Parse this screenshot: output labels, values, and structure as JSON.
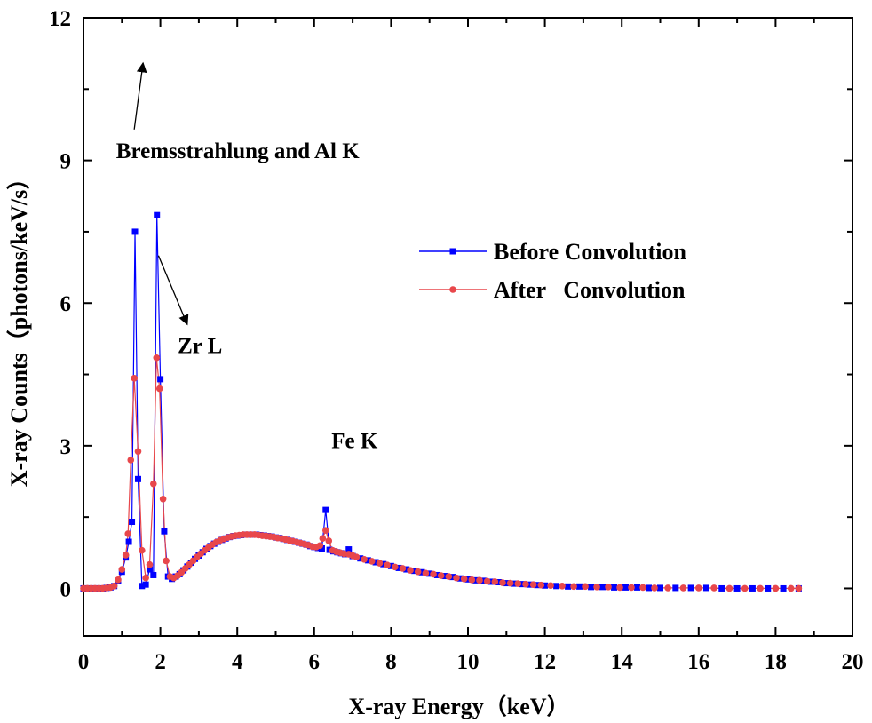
{
  "chart_data": {
    "type": "line",
    "title": "",
    "xlabel": "X-ray Energy（keV）",
    "ylabel": "X-ray Counts（photons/keV/s）",
    "xlim": [
      0,
      20
    ],
    "ylim": [
      -1,
      12
    ],
    "xticks": [
      "0",
      "2",
      "4",
      "6",
      "8",
      "10",
      "12",
      "14",
      "16",
      "18",
      "20"
    ],
    "yticks": [
      "0",
      "3",
      "6",
      "9",
      "12"
    ],
    "grid": false,
    "legend_position": "right",
    "series": [
      {
        "name": "Before Convolution",
        "color": "#0000ff",
        "marker": "square",
        "points": [
          [
            0.0,
            0.0
          ],
          [
            0.1,
            0.0
          ],
          [
            0.2,
            0.0
          ],
          [
            0.3,
            0.0
          ],
          [
            0.4,
            0.0
          ],
          [
            0.5,
            0.0
          ],
          [
            0.6,
            0.01
          ],
          [
            0.7,
            0.02
          ],
          [
            0.8,
            0.05
          ],
          [
            0.9,
            0.15
          ],
          [
            1.0,
            0.35
          ],
          [
            1.1,
            0.65
          ],
          [
            1.18,
            0.98
          ],
          [
            1.26,
            1.4
          ],
          [
            1.34,
            7.5
          ],
          [
            1.42,
            2.3
          ],
          [
            1.52,
            0.05
          ],
          [
            1.62,
            0.08
          ],
          [
            1.72,
            0.4
          ],
          [
            1.82,
            0.28
          ],
          [
            1.91,
            7.85
          ],
          [
            2.0,
            4.4
          ],
          [
            2.1,
            1.2
          ],
          [
            2.2,
            0.25
          ],
          [
            2.3,
            0.2
          ],
          [
            2.4,
            0.25
          ],
          [
            2.5,
            0.3
          ],
          [
            2.6,
            0.38
          ],
          [
            2.7,
            0.46
          ],
          [
            2.8,
            0.54
          ],
          [
            2.9,
            0.62
          ],
          [
            3.0,
            0.69
          ],
          [
            3.1,
            0.76
          ],
          [
            3.2,
            0.83
          ],
          [
            3.3,
            0.89
          ],
          [
            3.4,
            0.94
          ],
          [
            3.5,
            0.98
          ],
          [
            3.6,
            1.02
          ],
          [
            3.7,
            1.05
          ],
          [
            3.8,
            1.08
          ],
          [
            3.9,
            1.1
          ],
          [
            4.0,
            1.11
          ],
          [
            4.1,
            1.12
          ],
          [
            4.2,
            1.13
          ],
          [
            4.3,
            1.13
          ],
          [
            4.4,
            1.13
          ],
          [
            4.5,
            1.13
          ],
          [
            4.6,
            1.12
          ],
          [
            4.7,
            1.11
          ],
          [
            4.8,
            1.1
          ],
          [
            4.9,
            1.09
          ],
          [
            5.0,
            1.07
          ],
          [
            5.1,
            1.06
          ],
          [
            5.2,
            1.04
          ],
          [
            5.3,
            1.02
          ],
          [
            5.4,
            1.0
          ],
          [
            5.5,
            0.98
          ],
          [
            5.6,
            0.96
          ],
          [
            5.7,
            0.94
          ],
          [
            5.8,
            0.92
          ],
          [
            5.9,
            0.89
          ],
          [
            6.0,
            0.87
          ],
          [
            6.1,
            0.85
          ],
          [
            6.2,
            0.84
          ],
          [
            6.3,
            1.65
          ],
          [
            6.4,
            0.81
          ],
          [
            6.5,
            0.78
          ],
          [
            6.6,
            0.76
          ],
          [
            6.7,
            0.74
          ],
          [
            6.8,
            0.72
          ],
          [
            6.9,
            0.82
          ],
          [
            7.0,
            0.68
          ],
          [
            7.2,
            0.63
          ],
          [
            7.4,
            0.59
          ],
          [
            7.6,
            0.55
          ],
          [
            7.8,
            0.51
          ],
          [
            8.0,
            0.47
          ],
          [
            8.2,
            0.43
          ],
          [
            8.4,
            0.4
          ],
          [
            8.6,
            0.37
          ],
          [
            8.8,
            0.34
          ],
          [
            9.0,
            0.31
          ],
          [
            9.2,
            0.28
          ],
          [
            9.4,
            0.26
          ],
          [
            9.6,
            0.24
          ],
          [
            9.8,
            0.21
          ],
          [
            10.0,
            0.19
          ],
          [
            10.2,
            0.17
          ],
          [
            10.4,
            0.16
          ],
          [
            10.6,
            0.14
          ],
          [
            10.8,
            0.13
          ],
          [
            11.0,
            0.11
          ],
          [
            11.2,
            0.1
          ],
          [
            11.4,
            0.09
          ],
          [
            11.6,
            0.08
          ],
          [
            11.8,
            0.07
          ],
          [
            12.0,
            0.06
          ],
          [
            12.3,
            0.05
          ],
          [
            12.6,
            0.04
          ],
          [
            12.9,
            0.04
          ],
          [
            13.2,
            0.03
          ],
          [
            13.5,
            0.03
          ],
          [
            13.8,
            0.02
          ],
          [
            14.1,
            0.02
          ],
          [
            14.4,
            0.02
          ],
          [
            14.7,
            0.01
          ],
          [
            15.0,
            0.01
          ],
          [
            15.4,
            0.01
          ],
          [
            15.8,
            0.01
          ],
          [
            16.2,
            0.01
          ],
          [
            16.6,
            0.0
          ],
          [
            17.0,
            0.0
          ],
          [
            17.4,
            0.0
          ],
          [
            17.8,
            0.0
          ],
          [
            18.2,
            0.0
          ],
          [
            18.6,
            0.0
          ]
        ]
      },
      {
        "name": "After   Convolution",
        "color": "#e8474b",
        "marker": "circle",
        "points": [
          [
            0.0,
            0.0
          ],
          [
            0.1,
            0.0
          ],
          [
            0.2,
            0.0
          ],
          [
            0.3,
            0.0
          ],
          [
            0.4,
            0.0
          ],
          [
            0.5,
            0.0
          ],
          [
            0.6,
            0.01
          ],
          [
            0.7,
            0.02
          ],
          [
            0.8,
            0.05
          ],
          [
            0.9,
            0.18
          ],
          [
            1.0,
            0.4
          ],
          [
            1.1,
            0.7
          ],
          [
            1.16,
            1.15
          ],
          [
            1.23,
            2.7
          ],
          [
            1.32,
            4.42
          ],
          [
            1.42,
            2.88
          ],
          [
            1.52,
            0.8
          ],
          [
            1.62,
            0.22
          ],
          [
            1.72,
            0.5
          ],
          [
            1.82,
            2.2
          ],
          [
            1.9,
            4.85
          ],
          [
            1.98,
            4.2
          ],
          [
            2.07,
            1.88
          ],
          [
            2.15,
            0.58
          ],
          [
            2.25,
            0.25
          ],
          [
            2.35,
            0.22
          ],
          [
            2.45,
            0.27
          ],
          [
            2.55,
            0.34
          ],
          [
            2.65,
            0.42
          ],
          [
            2.75,
            0.5
          ],
          [
            2.85,
            0.58
          ],
          [
            2.95,
            0.66
          ],
          [
            3.05,
            0.73
          ],
          [
            3.15,
            0.8
          ],
          [
            3.25,
            0.86
          ],
          [
            3.35,
            0.92
          ],
          [
            3.45,
            0.97
          ],
          [
            3.55,
            1.01
          ],
          [
            3.65,
            1.04
          ],
          [
            3.75,
            1.07
          ],
          [
            3.85,
            1.09
          ],
          [
            3.95,
            1.11
          ],
          [
            4.05,
            1.12
          ],
          [
            4.15,
            1.13
          ],
          [
            4.25,
            1.13
          ],
          [
            4.35,
            1.13
          ],
          [
            4.45,
            1.13
          ],
          [
            4.55,
            1.12
          ],
          [
            4.65,
            1.11
          ],
          [
            4.75,
            1.1
          ],
          [
            4.85,
            1.09
          ],
          [
            4.95,
            1.08
          ],
          [
            5.05,
            1.06
          ],
          [
            5.15,
            1.05
          ],
          [
            5.25,
            1.03
          ],
          [
            5.35,
            1.01
          ],
          [
            5.45,
            0.99
          ],
          [
            5.55,
            0.97
          ],
          [
            5.65,
            0.95
          ],
          [
            5.75,
            0.93
          ],
          [
            5.85,
            0.91
          ],
          [
            5.95,
            0.88
          ],
          [
            6.05,
            0.87
          ],
          [
            6.15,
            0.9
          ],
          [
            6.22,
            1.05
          ],
          [
            6.3,
            1.22
          ],
          [
            6.38,
            1.0
          ],
          [
            6.48,
            0.8
          ],
          [
            6.58,
            0.77
          ],
          [
            6.68,
            0.75
          ],
          [
            6.78,
            0.73
          ],
          [
            6.9,
            0.72
          ],
          [
            7.0,
            0.69
          ],
          [
            7.1,
            0.66
          ],
          [
            7.3,
            0.61
          ],
          [
            7.5,
            0.57
          ],
          [
            7.7,
            0.53
          ],
          [
            7.9,
            0.49
          ],
          [
            8.1,
            0.45
          ],
          [
            8.3,
            0.42
          ],
          [
            8.5,
            0.38
          ],
          [
            8.7,
            0.35
          ],
          [
            8.9,
            0.32
          ],
          [
            9.1,
            0.3
          ],
          [
            9.3,
            0.27
          ],
          [
            9.5,
            0.25
          ],
          [
            9.7,
            0.22
          ],
          [
            9.9,
            0.2
          ],
          [
            10.1,
            0.18
          ],
          [
            10.3,
            0.17
          ],
          [
            10.5,
            0.15
          ],
          [
            10.7,
            0.14
          ],
          [
            10.9,
            0.12
          ],
          [
            11.1,
            0.11
          ],
          [
            11.3,
            0.1
          ],
          [
            11.5,
            0.09
          ],
          [
            11.7,
            0.08
          ],
          [
            11.9,
            0.07
          ],
          [
            12.15,
            0.06
          ],
          [
            12.45,
            0.05
          ],
          [
            12.75,
            0.04
          ],
          [
            13.05,
            0.04
          ],
          [
            13.35,
            0.03
          ],
          [
            13.65,
            0.03
          ],
          [
            13.95,
            0.02
          ],
          [
            14.25,
            0.02
          ],
          [
            14.55,
            0.02
          ],
          [
            14.85,
            0.01
          ],
          [
            15.2,
            0.01
          ],
          [
            15.6,
            0.01
          ],
          [
            16.0,
            0.01
          ],
          [
            16.4,
            0.01
          ],
          [
            16.8,
            0.0
          ],
          [
            17.2,
            0.0
          ],
          [
            17.6,
            0.0
          ],
          [
            18.0,
            0.0
          ],
          [
            18.4,
            0.0
          ],
          [
            18.6,
            0.0
          ]
        ]
      }
    ],
    "annotations": [
      {
        "text": "Bremsstrahlung and Al K",
        "arrow_from": [
          1.32,
          9.65
        ],
        "arrow_to": [
          1.55,
          11.05
        ],
        "label_at": [
          0.85,
          9.05
        ]
      },
      {
        "text": "Zr L",
        "arrow_from": [
          1.95,
          7.0
        ],
        "arrow_to": [
          2.7,
          5.55
        ],
        "label_at": [
          2.45,
          4.95
        ]
      },
      {
        "text": "Fe K",
        "label_at": [
          6.45,
          2.95
        ]
      }
    ]
  }
}
